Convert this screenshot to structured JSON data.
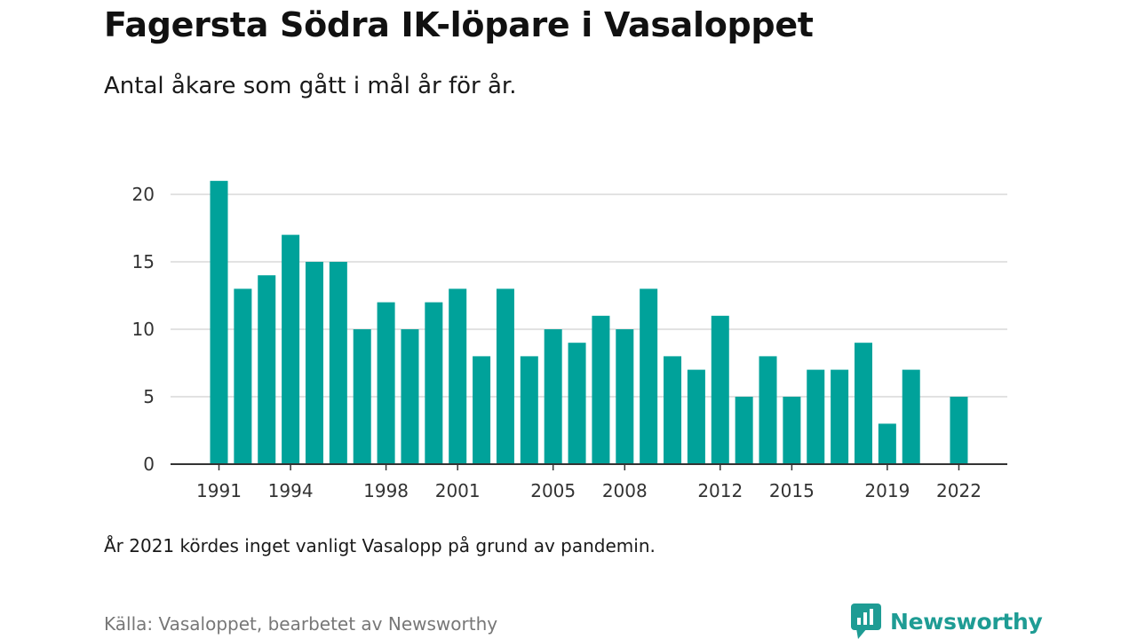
{
  "header": {
    "title": "Fagersta Södra IK-löpare i Vasaloppet",
    "subtitle": "Antal åkare som gått i mål år för år."
  },
  "footer": {
    "note": "År 2021 kördes inget vanligt Vasalopp på grund av pandemin.",
    "source": "Källa: Vasaloppet, bearbetet av Newsworthy",
    "brand": "Newsworthy",
    "brand_icon": "newsworthy-logo-icon"
  },
  "colors": {
    "bar": "#00a29a",
    "brand": "#1e9c94",
    "grid": "#d9d9d9",
    "axis": "#333333"
  },
  "chart_data": {
    "type": "bar",
    "x": [
      1991,
      1992,
      1993,
      1994,
      1995,
      1996,
      1997,
      1998,
      1999,
      2000,
      2001,
      2002,
      2003,
      2004,
      2005,
      2006,
      2007,
      2008,
      2009,
      2010,
      2011,
      2012,
      2013,
      2014,
      2015,
      2016,
      2017,
      2018,
      2019,
      2020,
      2021,
      2022
    ],
    "values": [
      21,
      13,
      14,
      17,
      15,
      15,
      10,
      12,
      10,
      12,
      13,
      8,
      13,
      8,
      10,
      9,
      11,
      10,
      13,
      8,
      7,
      11,
      5,
      8,
      5,
      7,
      7,
      9,
      3,
      7,
      null,
      5
    ],
    "xticks": [
      "1991",
      "1994",
      "1998",
      "2001",
      "2005",
      "2008",
      "2012",
      "2015",
      "2019",
      "2022"
    ],
    "yticks": [
      "0",
      "5",
      "10",
      "15",
      "20"
    ],
    "ylim": [
      0,
      21
    ],
    "grid": true,
    "legend": "none"
  }
}
